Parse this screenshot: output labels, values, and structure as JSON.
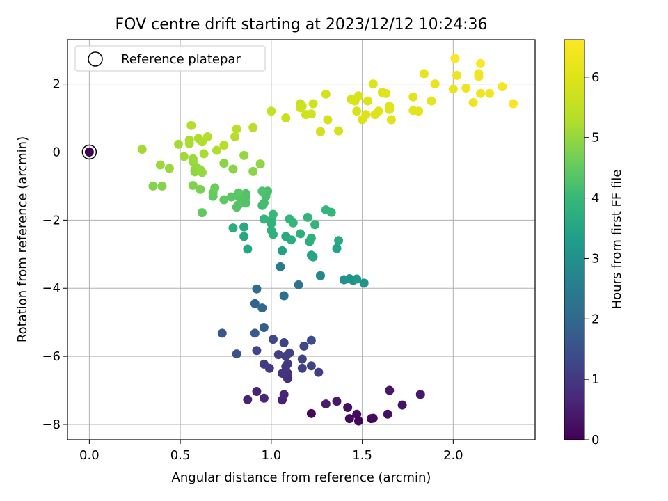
{
  "chart_data": {
    "type": "scatter",
    "title": "FOV centre drift starting at 2023/12/12 10:24:36",
    "xlabel": "Angular distance from reference (arcmin)",
    "ylabel": "Rotation from reference (arcmin)",
    "xlim": [
      -0.12,
      2.45
    ],
    "ylim": [
      -8.45,
      3.3
    ],
    "xticks": [
      0.0,
      0.5,
      1.0,
      1.5,
      2.0
    ],
    "xtick_labels": [
      "0.0",
      "0.5",
      "1.0",
      "1.5",
      "2.0"
    ],
    "yticks": [
      2,
      0,
      -2,
      -4,
      -6,
      -8
    ],
    "ytick_labels": [
      "2",
      "0",
      "−2",
      "−4",
      "−6",
      "−8"
    ],
    "grid": true,
    "legend": {
      "position": "top-left",
      "entries": [
        "Reference platepar"
      ]
    },
    "colorbar": {
      "label": "Hours from first FF file",
      "range": [
        0,
        6.62
      ],
      "ticks": [
        0,
        1,
        2,
        3,
        4,
        5,
        6
      ],
      "tick_labels": [
        "0",
        "1",
        "2",
        "3",
        "4",
        "5",
        "6"
      ],
      "colormap": "viridis"
    },
    "reference_point": {
      "x": 0.0,
      "y": 0.0,
      "c": 0.0
    },
    "series": [
      {
        "points": [
          [
            1.22,
            -7.68,
            0.1
          ],
          [
            1.43,
            -7.83,
            0.15
          ],
          [
            1.47,
            -7.7,
            0.2
          ],
          [
            1.48,
            -7.9,
            0.1
          ],
          [
            1.55,
            -7.83,
            0.12
          ],
          [
            1.56,
            -7.82,
            0.15
          ],
          [
            1.64,
            -7.7,
            0.25
          ],
          [
            1.42,
            -7.5,
            0.25
          ],
          [
            1.72,
            -7.43,
            0.3
          ],
          [
            1.82,
            -7.12,
            0.4
          ],
          [
            1.65,
            -7.0,
            0.35
          ],
          [
            1.36,
            -7.32,
            0.4
          ],
          [
            1.3,
            -7.4,
            0.45
          ],
          [
            1.06,
            -7.28,
            0.55
          ],
          [
            1.07,
            -7.12,
            0.6
          ],
          [
            0.96,
            -7.23,
            0.65
          ],
          [
            0.92,
            -7.03,
            0.6
          ],
          [
            0.87,
            -7.27,
            0.6
          ],
          [
            1.09,
            -6.65,
            0.8
          ],
          [
            1.09,
            -6.5,
            0.85
          ],
          [
            1.06,
            -6.5,
            0.9
          ],
          [
            1.08,
            -6.3,
            0.95
          ],
          [
            1.09,
            -6.22,
            1.0
          ],
          [
            0.99,
            -6.35,
            1.0
          ],
          [
            0.96,
            -6.23,
            1.05
          ],
          [
            1.04,
            -5.95,
            1.1
          ],
          [
            1.08,
            -6.0,
            1.1
          ],
          [
            1.1,
            -5.9,
            1.15
          ],
          [
            1.07,
            -5.6,
            1.2
          ],
          [
            1.01,
            -5.5,
            1.3
          ],
          [
            0.92,
            -5.83,
            1.3
          ],
          [
            1.17,
            -6.08,
            1.2
          ],
          [
            1.17,
            -6.35,
            1.15
          ],
          [
            1.22,
            -6.28,
            1.2
          ],
          [
            1.26,
            -6.47,
            1.1
          ],
          [
            1.18,
            -5.7,
            1.35
          ],
          [
            1.22,
            -5.53,
            1.4
          ],
          [
            0.81,
            -5.93,
            1.5
          ],
          [
            0.73,
            -5.32,
            1.6
          ],
          [
            0.91,
            -5.32,
            1.7
          ],
          [
            0.96,
            -5.15,
            1.75
          ],
          [
            0.91,
            -4.45,
            1.9
          ],
          [
            0.95,
            -4.58,
            2.0
          ],
          [
            0.92,
            -4.02,
            2.1
          ],
          [
            1.07,
            -4.22,
            2.2
          ],
          [
            1.15,
            -3.9,
            2.3
          ],
          [
            1.05,
            -3.37,
            2.5
          ],
          [
            1.27,
            -3.63,
            2.8
          ],
          [
            1.4,
            -3.75,
            3.0
          ],
          [
            1.43,
            -3.72,
            3.1
          ],
          [
            1.45,
            -3.77,
            3.0
          ],
          [
            1.47,
            -3.73,
            3.2
          ],
          [
            1.51,
            -3.85,
            3.1
          ],
          [
            0.87,
            -2.85,
            3.5
          ],
          [
            0.85,
            -2.48,
            3.55
          ],
          [
            0.85,
            -2.2,
            3.6
          ],
          [
            0.79,
            -2.23,
            3.7
          ],
          [
            1.06,
            -2.9,
            3.4
          ],
          [
            1.08,
            -2.48,
            3.6
          ],
          [
            1.11,
            -2.58,
            3.7
          ],
          [
            1.16,
            -2.4,
            3.75
          ],
          [
            1.21,
            -2.63,
            3.7
          ],
          [
            1.22,
            -2.53,
            3.8
          ],
          [
            1.22,
            -3.03,
            3.5
          ],
          [
            1.23,
            -3.08,
            3.5
          ],
          [
            1.36,
            -2.83,
            3.45
          ],
          [
            1.37,
            -2.6,
            3.55
          ],
          [
            1.1,
            -1.97,
            3.9
          ],
          [
            1.12,
            -2.08,
            3.9
          ],
          [
            1.2,
            -1.92,
            3.9
          ],
          [
            1.24,
            -2.13,
            3.9
          ],
          [
            1.3,
            -1.7,
            3.95
          ],
          [
            1.33,
            -1.77,
            3.95
          ],
          [
            1.0,
            -2.3,
            3.85
          ],
          [
            1.0,
            -2.0,
            3.9
          ],
          [
            0.96,
            -1.97,
            3.9
          ],
          [
            1.0,
            -2.1,
            3.85
          ],
          [
            1.01,
            -2.42,
            3.8
          ],
          [
            1.01,
            -1.83,
            4.0
          ],
          [
            0.95,
            -1.57,
            4.1
          ],
          [
            0.96,
            -1.5,
            4.15
          ],
          [
            0.97,
            -1.3,
            4.2
          ],
          [
            0.98,
            -1.15,
            4.2
          ],
          [
            0.95,
            -1.15,
            4.25
          ],
          [
            0.86,
            -1.22,
            4.3
          ],
          [
            0.86,
            -1.32,
            4.3
          ],
          [
            0.84,
            -1.42,
            4.35
          ],
          [
            0.86,
            -1.5,
            4.3
          ],
          [
            0.82,
            -1.55,
            4.35
          ],
          [
            0.81,
            -1.62,
            4.35
          ],
          [
            0.82,
            -1.3,
            4.35
          ],
          [
            0.82,
            -1.2,
            4.4
          ],
          [
            0.78,
            -1.32,
            4.4
          ],
          [
            0.74,
            -1.4,
            4.45
          ],
          [
            0.68,
            -1.3,
            4.5
          ],
          [
            0.68,
            -1.2,
            4.55
          ],
          [
            0.69,
            -1.05,
            4.6
          ],
          [
            0.62,
            -1.78,
            4.5
          ],
          [
            0.35,
            -1.0,
            4.85
          ],
          [
            0.4,
            -1.0,
            4.85
          ],
          [
            0.57,
            -0.98,
            4.8
          ],
          [
            0.61,
            -1.1,
            4.75
          ],
          [
            0.74,
            -0.33,
            4.9
          ],
          [
            0.79,
            -0.5,
            4.9
          ],
          [
            0.85,
            -0.1,
            5.0
          ],
          [
            0.9,
            -0.57,
            4.9
          ],
          [
            0.94,
            -0.35,
            4.95
          ],
          [
            0.57,
            -0.28,
            5.0
          ],
          [
            0.59,
            -0.45,
            5.0
          ],
          [
            0.58,
            -0.52,
            5.0
          ],
          [
            0.58,
            -0.58,
            4.95
          ],
          [
            0.61,
            -0.52,
            5.0
          ],
          [
            0.62,
            -0.6,
            5.0
          ],
          [
            0.57,
            -0.2,
            5.05
          ],
          [
            0.29,
            0.08,
            5.1
          ],
          [
            0.39,
            -0.38,
            5.05
          ],
          [
            0.44,
            -0.48,
            5.05
          ],
          [
            0.49,
            0.23,
            5.15
          ],
          [
            0.52,
            -0.13,
            5.1
          ],
          [
            0.55,
            0.35,
            5.2
          ],
          [
            0.55,
            0.25,
            5.2
          ],
          [
            0.56,
            0.78,
            5.3
          ],
          [
            0.6,
            0.4,
            5.25
          ],
          [
            0.62,
            0.3,
            5.25
          ],
          [
            0.63,
            -0.05,
            5.2
          ],
          [
            0.65,
            0.45,
            5.3
          ],
          [
            0.7,
            0.05,
            5.25
          ],
          [
            0.74,
            0.2,
            5.3
          ],
          [
            0.8,
            0.45,
            5.35
          ],
          [
            0.81,
            0.68,
            5.4
          ],
          [
            0.9,
            0.72,
            5.4
          ],
          [
            1.0,
            1.2,
            5.6
          ],
          [
            1.08,
            1.0,
            5.65
          ],
          [
            1.16,
            1.3,
            5.7
          ],
          [
            1.16,
            1.42,
            5.65
          ],
          [
            1.17,
            1.35,
            5.7
          ],
          [
            1.19,
            1.1,
            5.7
          ],
          [
            1.22,
            1.12,
            5.75
          ],
          [
            1.23,
            1.42,
            5.75
          ],
          [
            1.27,
            0.6,
            5.8
          ],
          [
            1.3,
            1.7,
            5.8
          ],
          [
            1.31,
            0.95,
            5.8
          ],
          [
            1.37,
            0.62,
            5.85
          ],
          [
            1.44,
            1.55,
            5.85
          ],
          [
            1.46,
            1.5,
            5.9
          ],
          [
            1.47,
            1.2,
            5.9
          ],
          [
            1.48,
            1.65,
            5.9
          ],
          [
            1.5,
            0.95,
            5.95
          ],
          [
            1.52,
            1.1,
            5.95
          ],
          [
            1.53,
            1.5,
            5.95
          ],
          [
            1.56,
            2.0,
            6.0
          ],
          [
            1.57,
            1.1,
            6.0
          ],
          [
            1.59,
            1.2,
            6.0
          ],
          [
            1.61,
            1.75,
            6.0
          ],
          [
            1.63,
            1.72,
            6.05
          ],
          [
            1.65,
            1.25,
            6.05
          ],
          [
            1.65,
            1.35,
            6.05
          ],
          [
            1.66,
            0.95,
            6.05
          ],
          [
            1.78,
            1.62,
            6.1
          ],
          [
            1.78,
            1.22,
            6.1
          ],
          [
            1.81,
            1.2,
            6.1
          ],
          [
            1.84,
            2.3,
            6.2
          ],
          [
            1.88,
            1.5,
            6.15
          ],
          [
            1.9,
            2.0,
            6.2
          ],
          [
            2.0,
            1.85,
            6.25
          ],
          [
            2.02,
            2.25,
            6.3
          ],
          [
            2.07,
            1.88,
            6.3
          ],
          [
            2.11,
            1.45,
            6.3
          ],
          [
            2.14,
            2.3,
            6.35
          ],
          [
            2.14,
            2.22,
            6.35
          ],
          [
            2.15,
            1.72,
            6.35
          ],
          [
            2.2,
            1.72,
            6.4
          ],
          [
            2.27,
            1.92,
            6.45
          ],
          [
            2.33,
            1.42,
            6.5
          ],
          [
            2.01,
            2.75,
            6.6
          ],
          [
            2.15,
            2.6,
            6.58
          ]
        ]
      }
    ]
  }
}
